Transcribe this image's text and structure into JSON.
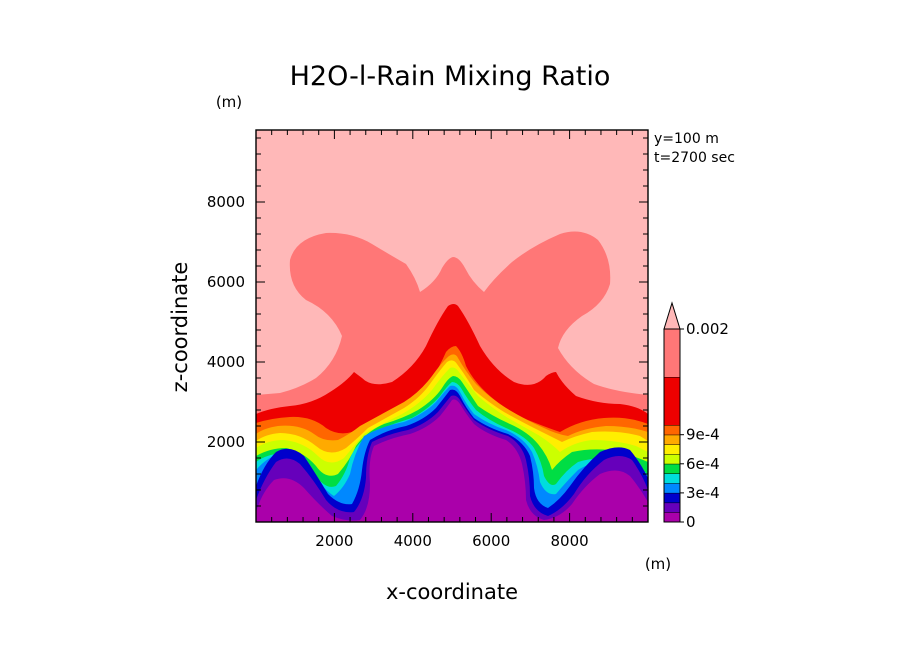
{
  "chart_data": {
    "type": "heatmap",
    "title": "H2O-l-Rain Mixing Ratio",
    "xlabel": "x-coordinate",
    "ylabel": "z-coordinate",
    "x_unit": "(m)",
    "y_unit": "(m)",
    "annotations": [
      "y=100 m",
      "t=2700 sec"
    ],
    "xlim": [
      0,
      10000
    ],
    "ylim": [
      0,
      9800
    ],
    "x_ticks": [
      2000,
      4000,
      6000,
      8000
    ],
    "y_ticks": [
      2000,
      4000,
      6000,
      8000
    ],
    "x_tick_labels": [
      "2000",
      "4000",
      "6000",
      "8000"
    ],
    "y_tick_labels": [
      "2000",
      "4000",
      "6000",
      "8000"
    ],
    "minor_tick_step": 400,
    "colorbar": {
      "levels": [
        0,
        0.0001,
        0.0002,
        0.0003,
        0.0004,
        0.0005,
        0.0006,
        0.0007,
        0.0008,
        0.0009,
        0.001,
        0.002
      ],
      "colors": [
        "#aa00aa",
        "#6600bb",
        "#0000cc",
        "#0088ff",
        "#00dddd",
        "#00dd44",
        "#ccff00",
        "#ffee00",
        "#ffaa00",
        "#ff6600",
        "#ee0000",
        "#ff7777",
        "#ffb8b8"
      ],
      "labels": [
        {
          "level": 0,
          "text": "0"
        },
        {
          "level": 0.0003,
          "text": "3e-4"
        },
        {
          "level": 0.0006,
          "text": "6e-4"
        },
        {
          "level": 0.0009,
          "text": "9e-4"
        },
        {
          "level": 0.002,
          "text": "0.002"
        }
      ],
      "extend": "max"
    },
    "legend_position": "right",
    "grid": false
  }
}
